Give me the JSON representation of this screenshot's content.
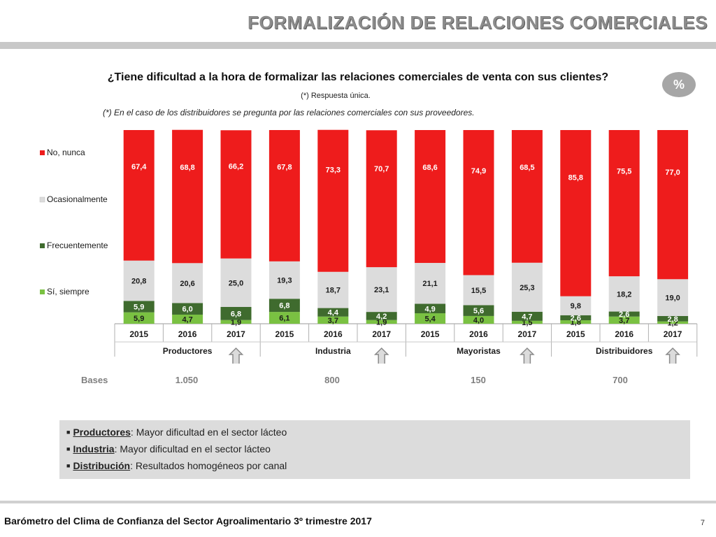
{
  "header": {
    "title": "FORMALIZACIÓN DE RELACIONES COMERCIALES"
  },
  "badge": "%",
  "footer": {
    "text": "Barómetro del Clima de Confianza del Sector Agroalimentario 3º trimestre 2017",
    "page": "7"
  },
  "bases": {
    "label": "Bases",
    "values": [
      {
        "group": "Productores",
        "value": "1.050"
      },
      {
        "group": "Industria",
        "value": "800"
      },
      {
        "group": "Mayoristas",
        "value": "150"
      },
      {
        "group": "Distribuidores",
        "value": "700"
      }
    ]
  },
  "notes": [
    {
      "key": "Productores",
      "text": "Mayor dificultad en el sector lácteo"
    },
    {
      "key": "Industria",
      "text": "Mayor dificultad en el sector lácteo"
    },
    {
      "key": "Distribución",
      "text": "Resultados homogéneos por canal"
    }
  ],
  "chart_data": {
    "type": "bar",
    "stacked": true,
    "title": "¿Tiene dificultad a la hora de formalizar las relaciones comerciales de venta con sus clientes?",
    "subtitle": "(*) Respuesta única.",
    "note": "(*) En el caso de los distribuidores se pregunta por las relaciones comerciales con sus proveedores.",
    "ylim": [
      0,
      100
    ],
    "legend_position": "left",
    "groups": [
      "Productores",
      "Industria",
      "Mayoristas",
      "Distribuidores"
    ],
    "categories": [
      "2015",
      "2016",
      "2017",
      "2015",
      "2016",
      "2017",
      "2015",
      "2016",
      "2017",
      "2015",
      "2016",
      "2017"
    ],
    "highlight_marker": "up-arrow under each 2017 bar",
    "series": [
      {
        "name": "Sí, siempre",
        "color": "#7ac142",
        "values": [
          5.9,
          4.7,
          1.9,
          6.1,
          3.7,
          1.9,
          5.4,
          4.0,
          1.5,
          1.8,
          3.7,
          1.2
        ]
      },
      {
        "name": "Frecuentemente",
        "color": "#3f6b2e",
        "values": [
          5.9,
          6.0,
          6.8,
          6.8,
          4.4,
          4.2,
          4.9,
          5.6,
          4.7,
          2.6,
          2.6,
          2.8
        ]
      },
      {
        "name": "Ocasionalmente",
        "color": "#dcdcdc",
        "values": [
          20.8,
          20.6,
          25.0,
          19.3,
          18.7,
          23.1,
          21.1,
          15.5,
          25.3,
          9.8,
          18.2,
          19.0
        ]
      },
      {
        "name": "No, nunca",
        "color": "#ee1c1c",
        "values": [
          67.4,
          68.8,
          66.2,
          67.8,
          73.3,
          70.7,
          68.6,
          74.9,
          68.5,
          85.8,
          75.5,
          77.0
        ]
      }
    ]
  }
}
